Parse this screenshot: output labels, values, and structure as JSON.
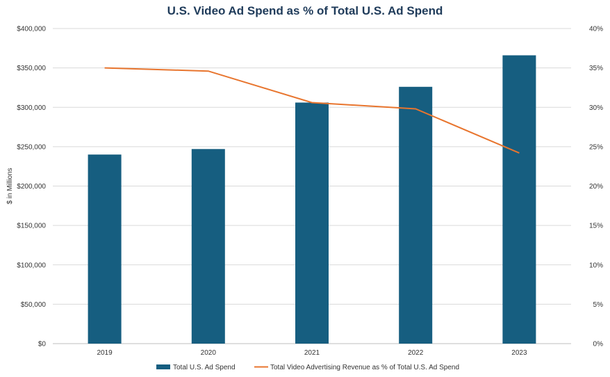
{
  "chart_data": {
    "type": "bar",
    "title": "U.S. Video Ad Spend as % of Total U.S. Ad Spend",
    "categories": [
      "2019",
      "2020",
      "2021",
      "2022",
      "2023"
    ],
    "ylabel": "$ in Millions",
    "ylim": [
      0,
      400000
    ],
    "y_ticks": [
      "$0",
      "$50,000",
      "$100,000",
      "$150,000",
      "$200,000",
      "$250,000",
      "$300,000",
      "$350,000",
      "$400,000"
    ],
    "y2lim": [
      0,
      40
    ],
    "y2_ticks": [
      "0%",
      "5%",
      "10%",
      "15%",
      "20%",
      "25%",
      "30%",
      "35%",
      "40%"
    ],
    "grid": true,
    "legend_position": "bottom",
    "series": [
      {
        "name": "Total U.S. Ad Spend",
        "type": "bar",
        "axis": "left",
        "color": "#165e80",
        "values": [
          240000,
          247000,
          306000,
          326000,
          366000
        ]
      },
      {
        "name": "Total Video Advertising Revenue as % of Total U.S. Ad Spend",
        "type": "line",
        "axis": "right",
        "color": "#e8752e",
        "values": [
          35.0,
          34.6,
          30.6,
          29.8,
          24.2
        ]
      }
    ]
  }
}
